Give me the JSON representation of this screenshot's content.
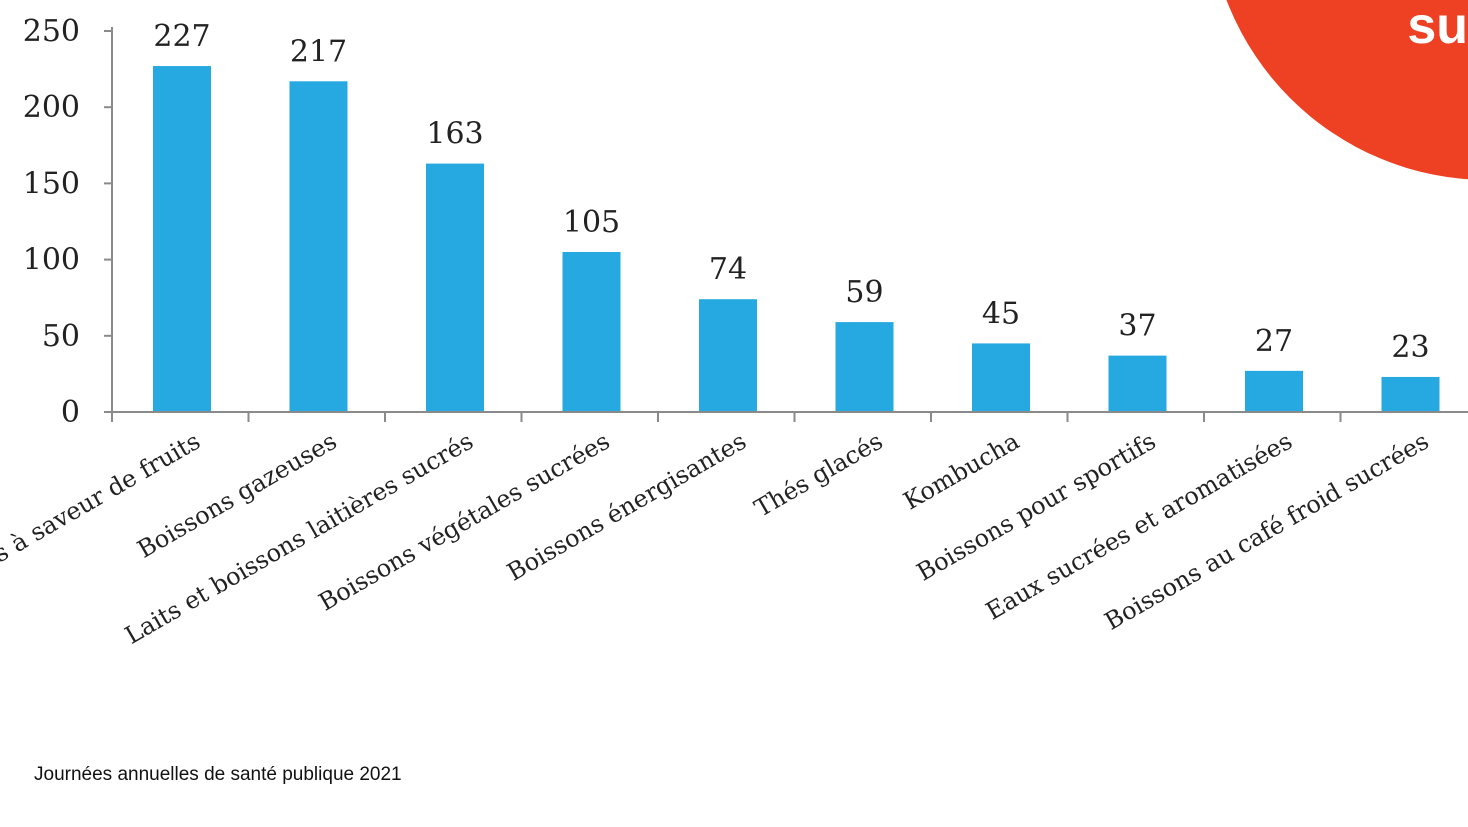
{
  "chart_data": {
    "type": "bar",
    "categories": [
      "Boissons à saveur de fruits",
      "Boissons gazeuses",
      "Laits et boissons laitières sucrés",
      "Boissons végétales sucrées",
      "Boissons énergisantes",
      "Thés glacés",
      "Kombucha",
      "Boissons pour sportifs",
      "Eaux sucrées et aromatisées",
      "Boissons au café froid sucrées"
    ],
    "values": [
      227,
      217,
      163,
      105,
      74,
      59,
      45,
      37,
      27,
      23
    ],
    "ylim": [
      0,
      250
    ],
    "yticks": [
      0,
      50,
      100,
      150,
      200,
      250
    ],
    "grid": false,
    "bar_color": "#26a9e0"
  },
  "footer": {
    "text": "Journées annuelles de santé publique 2021"
  },
  "brand": {
    "text": "su",
    "color": "#ee4023"
  }
}
